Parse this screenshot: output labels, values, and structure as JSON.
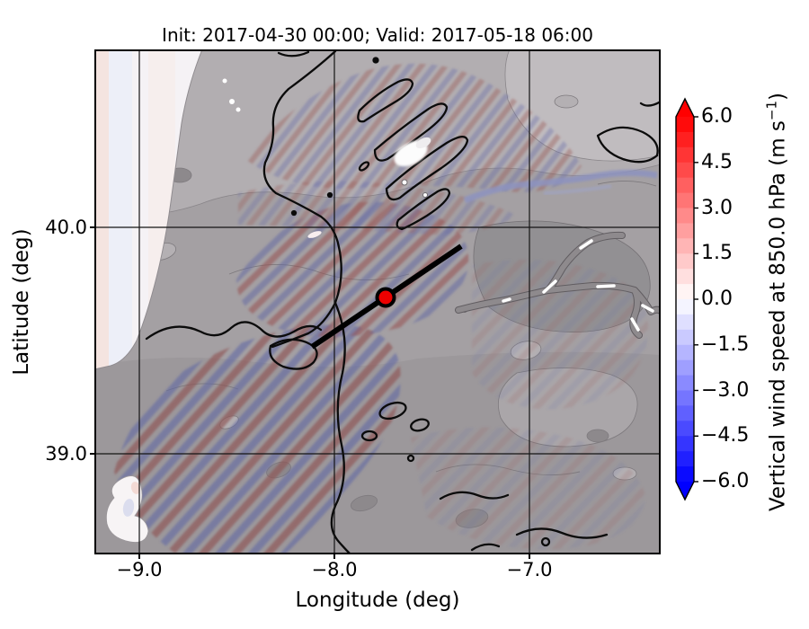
{
  "title": "Init: 2017-04-30 00:00; Valid: 2017-05-18 06:00",
  "axes": {
    "x": {
      "label": "Longitude (deg)",
      "ticks": [
        "−9.0",
        "−8.0",
        "−7.0"
      ]
    },
    "y": {
      "label": "Latitude (deg)",
      "ticks": [
        "40.0",
        "39.0"
      ]
    }
  },
  "colorbar": {
    "label_prefix": "Vertical wind speed at 850.0 hPa (m s",
    "label_sup": "−1",
    "label_suffix": ")",
    "ticks": [
      "6.0",
      "4.5",
      "3.0",
      "1.5",
      "0.0",
      "−1.5",
      "−3.0",
      "−4.5",
      "−6.0"
    ],
    "tick_values": [
      6,
      4.5,
      3,
      1.5,
      0,
      -1.5,
      -3,
      -4.5,
      -6
    ],
    "vmin": -6,
    "vmax": 6,
    "step": 0.5,
    "extend": "both",
    "colors": {
      "positive_end": "#ff0000",
      "negative_end": "#0000ff",
      "zero": "#ffffff"
    }
  },
  "chart_data": {
    "type": "heatmap",
    "title": "Init: 2017-04-30 00:00; Valid: 2017-05-18 06:00",
    "xlabel": "Longitude (deg)",
    "ylabel": "Latitude (deg)",
    "xlim": [
      -9.23,
      -6.33
    ],
    "ylim": [
      38.56,
      40.79
    ],
    "x_ticks": [
      -9.0,
      -8.0,
      -7.0
    ],
    "y_ticks": [
      39.0,
      40.0
    ],
    "grid": true,
    "field": "vertical wind speed at 850.0 hPa (m s^-1)",
    "init_time": "2017-04-30 00:00",
    "valid_time": "2017-05-18 06:00",
    "colormap": "blue-white-red (bwr), discrete 0.5 m/s steps, extend both",
    "value_range": [
      -6.0,
      6.0
    ],
    "colorbar_ticks": [
      6.0,
      4.5,
      3.0,
      1.5,
      0.0,
      -1.5,
      -3.0,
      -4.5,
      -6.0
    ],
    "legend_position": "right colorbar",
    "overlays": {
      "marker_point": {
        "lon": -7.74,
        "lat": 39.69,
        "style": "red filled circle with black edge"
      },
      "cross_section_line": {
        "from_lonlat": [
          -8.12,
          39.48
        ],
        "to_lonlat": [
          -7.36,
          39.91
        ],
        "style": "thick black line"
      },
      "terrain_contours": "thick black and thin gray topography contours over gray shaded relief",
      "features": "diagonal red/blue gravity-wave bands (strongest SW and center), pale ocean strip along west edge, bright white cloud patch NE of center, white river valleys in the east, white lagoon at bottom-left"
    }
  }
}
